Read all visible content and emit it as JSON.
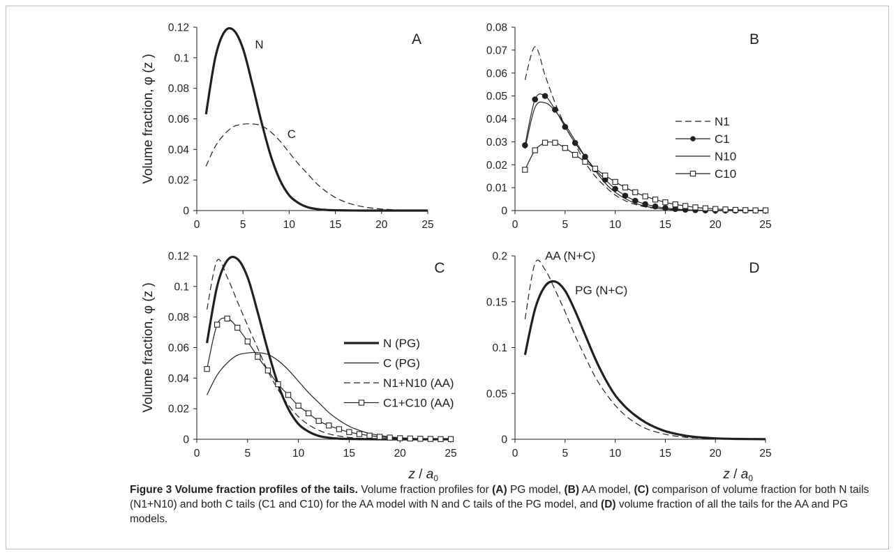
{
  "figure": {
    "caption_title": "Figure 3 Volume fraction profiles of the tails.",
    "caption_parts": [
      {
        "text": " Volume fraction profiles for ",
        "bold": false
      },
      {
        "text": "(A)",
        "bold": true
      },
      {
        "text": " PG model, ",
        "bold": false
      },
      {
        "text": "(B)",
        "bold": true
      },
      {
        "text": " AA model, ",
        "bold": false
      },
      {
        "text": "(C)",
        "bold": true
      },
      {
        "text": " comparison of volume fraction for both N tails (N1+N10) and both C tails (C1 and C10) for the AA model with N and C tails of the PG model, and ",
        "bold": false
      },
      {
        "text": "(D)",
        "bold": true
      },
      {
        "text": " volume fraction of all the tails for the AA and PG models.",
        "bold": false
      }
    ],
    "ylabel": "Volume fraction, φ (z )",
    "xlabel_z": "z",
    "xlabel_sep": " / ",
    "xlabel_a": "a",
    "xlabel_sub": "0"
  },
  "colors": {
    "ink": "#231f20",
    "frame": "#bcbec0"
  },
  "chart_data": [
    {
      "panel": "A",
      "type": "line",
      "xlim": [
        0,
        25
      ],
      "ylim": [
        0,
        0.12
      ],
      "xticks": [
        "0",
        "5",
        "10",
        "15",
        "20",
        "25"
      ],
      "yticks": [
        "0",
        "0.02",
        "0.04",
        "0.06",
        "0.08",
        "0.1",
        "0.12"
      ],
      "series": [
        {
          "name": "N",
          "style": "thick",
          "x": [
            1,
            2,
            3,
            4,
            5,
            6,
            7,
            8,
            9,
            10,
            11,
            12,
            13,
            14,
            15,
            16,
            18,
            20,
            22,
            25
          ],
          "y": [
            0.063,
            0.1,
            0.117,
            0.118,
            0.106,
            0.083,
            0.058,
            0.036,
            0.02,
            0.01,
            0.005,
            0.0022,
            0.001,
            0.0004,
            0.0002,
            0.0001,
            0,
            0,
            0,
            0
          ]
        },
        {
          "name": "C",
          "style": "dashed",
          "x": [
            1,
            2,
            3,
            4,
            5,
            6,
            7,
            8,
            9,
            10,
            11,
            12,
            13,
            14,
            15,
            16,
            17,
            18,
            19,
            20,
            22,
            25
          ],
          "y": [
            0.029,
            0.042,
            0.05,
            0.055,
            0.0565,
            0.0567,
            0.0555,
            0.0515,
            0.0455,
            0.038,
            0.0305,
            0.024,
            0.0175,
            0.0125,
            0.0085,
            0.0058,
            0.0038,
            0.0025,
            0.0016,
            0.001,
            0.0004,
            0.0001
          ]
        }
      ],
      "labels": [
        {
          "text": "N",
          "series": "N",
          "at_x": 6.3,
          "at_y": 0.106
        },
        {
          "text": "C",
          "series": "C",
          "at_x": 9.8,
          "at_y": 0.0475
        }
      ]
    },
    {
      "panel": "B",
      "type": "line",
      "xlim": [
        0,
        25
      ],
      "ylim": [
        0,
        0.08
      ],
      "xticks": [
        "0",
        "5",
        "10",
        "15",
        "20",
        "25"
      ],
      "yticks": [
        "0",
        "0.01",
        "0.02",
        "0.03",
        "0.04",
        "0.05",
        "0.06",
        "0.07",
        "0.08"
      ],
      "series": [
        {
          "name": "N1",
          "style": "dashed",
          "x": [
            1,
            2,
            3,
            4,
            5,
            6,
            7,
            8,
            9,
            10,
            11,
            12,
            13,
            14,
            15,
            16,
            18,
            20,
            25
          ],
          "y": [
            0.057,
            0.0715,
            0.059,
            0.047,
            0.037,
            0.029,
            0.021,
            0.015,
            0.0105,
            0.0068,
            0.0043,
            0.0027,
            0.0016,
            0.001,
            0.0006,
            0.0003,
            0.0001,
            0,
            0
          ]
        },
        {
          "name": "C1",
          "style": "filled-circle",
          "x": [
            1,
            2,
            3,
            4,
            5,
            6,
            7,
            8,
            9,
            10,
            11,
            12,
            13,
            14,
            15,
            16,
            17,
            18,
            19,
            20,
            21,
            22,
            23,
            24,
            25
          ],
          "y": [
            0.0285,
            0.0485,
            0.05,
            0.044,
            0.0365,
            0.0295,
            0.0235,
            0.018,
            0.0135,
            0.0095,
            0.0065,
            0.0043,
            0.0028,
            0.0018,
            0.0011,
            0.0007,
            0.0004,
            0.0002,
            0.0001,
            0,
            0,
            0,
            0,
            0,
            0
          ]
        },
        {
          "name": "N10",
          "style": "thin",
          "x": [
            1,
            2,
            3,
            4,
            5,
            6,
            7,
            8,
            9,
            10,
            11,
            12,
            13,
            14,
            15,
            16,
            18,
            20,
            25
          ],
          "y": [
            0.027,
            0.045,
            0.047,
            0.0435,
            0.0375,
            0.0305,
            0.0235,
            0.0175,
            0.012,
            0.008,
            0.0052,
            0.0032,
            0.0019,
            0.0011,
            0.0006,
            0.0003,
            0.0001,
            0,
            0
          ]
        },
        {
          "name": "C10",
          "style": "open-square",
          "x": [
            1,
            2,
            3,
            4,
            5,
            6,
            7,
            8,
            9,
            10,
            11,
            12,
            13,
            14,
            15,
            16,
            17,
            18,
            19,
            20,
            21,
            22,
            23,
            24,
            25
          ],
          "y": [
            0.0178,
            0.0263,
            0.0296,
            0.0296,
            0.0273,
            0.0243,
            0.0213,
            0.0183,
            0.0153,
            0.0125,
            0.0101,
            0.008,
            0.0062,
            0.0048,
            0.0036,
            0.0027,
            0.002,
            0.0014,
            0.001,
            0.0007,
            0.0005,
            0.0003,
            0.0002,
            0.0001,
            0.0001
          ]
        }
      ],
      "legend": [
        "N1",
        "C1",
        "N10",
        "C10"
      ]
    },
    {
      "panel": "C",
      "type": "line",
      "xlim": [
        0,
        25
      ],
      "ylim": [
        0,
        0.12
      ],
      "xticks": [
        "0",
        "5",
        "10",
        "15",
        "20",
        "25"
      ],
      "yticks": [
        "0",
        "0.02",
        "0.04",
        "0.06",
        "0.08",
        "0.1",
        "0.12"
      ],
      "series": [
        {
          "name": "N (PG)",
          "style": "thick",
          "x": [
            1,
            2,
            3,
            4,
            5,
            6,
            7,
            8,
            9,
            10,
            11,
            12,
            13,
            14,
            15,
            16,
            18,
            20,
            22,
            25
          ],
          "y": [
            0.063,
            0.1,
            0.117,
            0.118,
            0.106,
            0.083,
            0.058,
            0.036,
            0.02,
            0.01,
            0.005,
            0.0022,
            0.001,
            0.0004,
            0.0002,
            0.0001,
            0,
            0,
            0,
            0
          ]
        },
        {
          "name": "C (PG)",
          "style": "thin",
          "x": [
            1,
            2,
            3,
            4,
            5,
            6,
            7,
            8,
            9,
            10,
            11,
            12,
            13,
            14,
            15,
            16,
            17,
            18,
            19,
            20,
            22,
            25
          ],
          "y": [
            0.029,
            0.042,
            0.05,
            0.055,
            0.0565,
            0.0567,
            0.0555,
            0.0515,
            0.0455,
            0.038,
            0.0305,
            0.024,
            0.0175,
            0.0125,
            0.0085,
            0.0058,
            0.0038,
            0.0025,
            0.0016,
            0.001,
            0.0004,
            0.0001
          ]
        },
        {
          "name": "N1+N10 (AA)",
          "style": "dashed",
          "x": [
            1,
            2,
            3,
            4,
            5,
            6,
            7,
            8,
            9,
            10,
            11,
            12,
            13,
            14,
            15,
            16,
            18,
            20,
            25
          ],
          "y": [
            0.085,
            0.117,
            0.106,
            0.09,
            0.0745,
            0.0595,
            0.0445,
            0.0325,
            0.0225,
            0.0148,
            0.0095,
            0.0059,
            0.0035,
            0.0021,
            0.0012,
            0.0006,
            0.0002,
            0,
            0
          ]
        },
        {
          "name": "C1+C10 (AA)",
          "style": "open-square",
          "x": [
            1,
            2,
            3,
            4,
            5,
            6,
            7,
            8,
            9,
            10,
            11,
            12,
            13,
            14,
            15,
            16,
            17,
            18,
            19,
            20,
            21,
            22,
            23,
            24,
            25
          ],
          "y": [
            0.046,
            0.075,
            0.079,
            0.073,
            0.064,
            0.054,
            0.045,
            0.036,
            0.029,
            0.022,
            0.017,
            0.012,
            0.009,
            0.0066,
            0.0047,
            0.0034,
            0.0024,
            0.0016,
            0.0011,
            0.0007,
            0.0005,
            0.0003,
            0.0002,
            0.0001,
            0.0001
          ]
        }
      ],
      "legend": [
        "N (PG)",
        "C (PG)",
        "N1+N10 (AA)",
        "C1+C10 (AA)"
      ]
    },
    {
      "panel": "D",
      "type": "line",
      "xlim": [
        0,
        25
      ],
      "ylim": [
        0,
        0.2
      ],
      "xticks": [
        "0",
        "5",
        "10",
        "15",
        "20",
        "25"
      ],
      "yticks": [
        "0",
        "0.05",
        "0.1",
        "0.15",
        "0.2"
      ],
      "series": [
        {
          "name": "AA (N+C)",
          "style": "dashed",
          "x": [
            1,
            2,
            3,
            4,
            5,
            6,
            7,
            8,
            9,
            10,
            11,
            12,
            13,
            14,
            15,
            16,
            17,
            18,
            20,
            22,
            25
          ],
          "y": [
            0.131,
            0.192,
            0.185,
            0.163,
            0.139,
            0.113,
            0.09,
            0.068,
            0.051,
            0.037,
            0.026,
            0.018,
            0.012,
            0.0082,
            0.0054,
            0.0035,
            0.0022,
            0.0014,
            0.0005,
            0.0002,
            0
          ]
        },
        {
          "name": "PG (N+C)",
          "style": "thick",
          "x": [
            1,
            2,
            3,
            4,
            5,
            6,
            7,
            8,
            9,
            10,
            11,
            12,
            13,
            14,
            15,
            16,
            17,
            18,
            20,
            22,
            25
          ],
          "y": [
            0.092,
            0.142,
            0.167,
            0.172,
            0.162,
            0.14,
            0.114,
            0.088,
            0.066,
            0.048,
            0.0355,
            0.026,
            0.0185,
            0.013,
            0.0088,
            0.006,
            0.0039,
            0.0025,
            0.001,
            0.0004,
            0.0001
          ]
        }
      ],
      "labels": [
        {
          "text": "AA (N+C)",
          "series": "AA (N+C)",
          "at_x": 3,
          "at_y": 0.196
        },
        {
          "text": "PG (N+C)",
          "series": "PG (N+C)",
          "at_x": 6,
          "at_y": 0.158
        }
      ]
    }
  ]
}
